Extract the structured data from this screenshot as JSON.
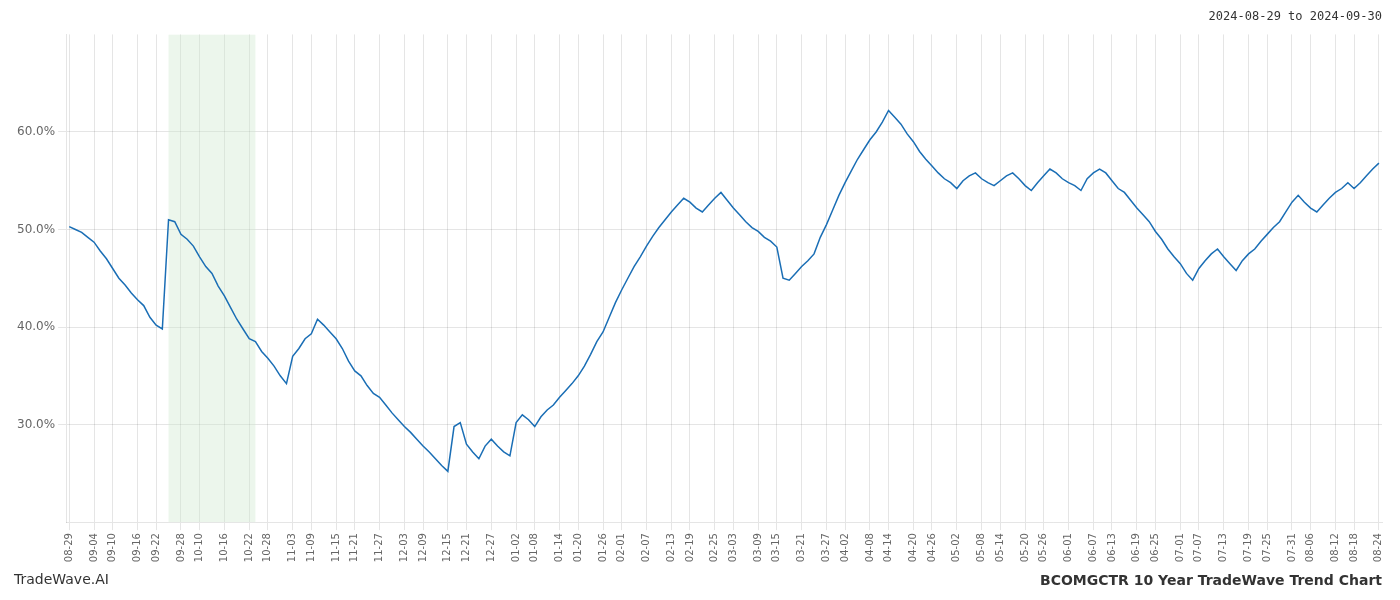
{
  "chart_data": {
    "type": "line",
    "title": "BCOMGCTR 10 Year TradeWave Trend Chart",
    "subtitle": "2024-08-29 to 2024-09-30",
    "annotations": [
      "TradeWave.AI"
    ],
    "color": "#1a6eb5",
    "shade": {
      "x": [
        16,
        30
      ],
      "color": "#c8e6c9"
    },
    "ylim": [
      0.2,
      0.7
    ],
    "yticks": [
      {
        "value": 0.3,
        "label": "30.0%"
      },
      {
        "value": 0.4,
        "label": "40.0%"
      },
      {
        "value": 0.5,
        "label": "50.0%"
      },
      {
        "value": 0.6,
        "label": "60.0%"
      }
    ],
    "grid": true,
    "categories": [
      "08-29",
      null,
      null,
      null,
      "09-04",
      null,
      null,
      "09-10",
      null,
      null,
      null,
      "09-16",
      null,
      null,
      "09-22",
      null,
      null,
      null,
      "09-28",
      null,
      null,
      "10-10",
      null,
      null,
      null,
      "10-16",
      null,
      null,
      null,
      "10-22",
      null,
      null,
      "10-28",
      null,
      null,
      null,
      "11-03",
      null,
      null,
      "11-09",
      null,
      null,
      null,
      "11-15",
      null,
      null,
      "11-21",
      null,
      null,
      null,
      "11-27",
      null,
      null,
      null,
      "12-03",
      null,
      null,
      "12-09",
      null,
      null,
      null,
      "12-15",
      null,
      null,
      "12-21",
      null,
      null,
      null,
      "12-27",
      null,
      null,
      null,
      "01-02",
      null,
      null,
      "01-08",
      null,
      null,
      null,
      "01-14",
      null,
      null,
      "01-20",
      null,
      null,
      null,
      "01-26",
      null,
      null,
      "02-01",
      null,
      null,
      null,
      "02-07",
      null,
      null,
      null,
      "02-13",
      null,
      null,
      "02-19",
      null,
      null,
      null,
      "02-25",
      null,
      null,
      "03-03",
      null,
      null,
      null,
      "03-09",
      null,
      null,
      "03-15",
      null,
      null,
      null,
      "03-21",
      null,
      null,
      null,
      "03-27",
      null,
      null,
      "04-02",
      null,
      null,
      null,
      "04-08",
      null,
      null,
      "04-14",
      null,
      null,
      null,
      "04-20",
      null,
      null,
      "04-26",
      null,
      null,
      null,
      "05-02",
      null,
      null,
      null,
      "05-08",
      null,
      null,
      "05-14",
      null,
      null,
      null,
      "05-20",
      null,
      null,
      "05-26",
      null,
      null,
      null,
      "06-01",
      null,
      null,
      null,
      "06-07",
      null,
      null,
      "06-13",
      null,
      null,
      null,
      "06-19",
      null,
      null,
      "06-25",
      null,
      null,
      null,
      "07-01",
      null,
      null,
      "07-07",
      null,
      null,
      null,
      "07-13",
      null,
      null,
      null,
      "07-19",
      null,
      null,
      "07-25",
      null,
      null,
      null,
      "07-31",
      null,
      null,
      "08-06",
      null,
      null,
      null,
      "08-12",
      null,
      null,
      "08-18",
      null,
      null,
      null,
      "08-24"
    ],
    "values": [
      0.503,
      0.5,
      0.497,
      0.492,
      0.487,
      0.478,
      0.47,
      0.46,
      0.45,
      0.443,
      0.435,
      0.428,
      0.422,
      0.41,
      0.402,
      0.398,
      0.51,
      0.508,
      0.495,
      0.49,
      0.483,
      0.472,
      0.462,
      0.455,
      0.442,
      0.432,
      0.42,
      0.408,
      0.398,
      0.388,
      0.385,
      0.375,
      0.368,
      0.36,
      0.35,
      0.342,
      0.37,
      0.378,
      0.388,
      0.393,
      0.408,
      0.402,
      0.395,
      0.388,
      0.378,
      0.365,
      0.355,
      0.35,
      0.34,
      0.332,
      0.328,
      0.32,
      0.312,
      0.305,
      0.298,
      0.292,
      0.285,
      0.278,
      0.272,
      0.265,
      0.258,
      0.252,
      0.298,
      0.302,
      0.28,
      0.272,
      0.265,
      0.278,
      0.285,
      0.278,
      0.272,
      0.268,
      0.302,
      0.31,
      0.305,
      0.298,
      0.308,
      0.315,
      0.32,
      0.328,
      0.335,
      0.342,
      0.35,
      0.36,
      0.372,
      0.385,
      0.395,
      0.41,
      0.425,
      0.438,
      0.45,
      0.462,
      0.472,
      0.483,
      0.493,
      0.502,
      0.51,
      0.518,
      0.525,
      0.532,
      0.528,
      0.522,
      0.518,
      0.525,
      0.532,
      0.538,
      0.53,
      0.522,
      0.515,
      0.508,
      0.502,
      0.498,
      0.492,
      0.488,
      0.482,
      0.45,
      0.448,
      0.455,
      0.462,
      0.468,
      0.475,
      0.492,
      0.505,
      0.52,
      0.535,
      0.548,
      0.56,
      0.572,
      0.582,
      0.592,
      0.6,
      0.61,
      0.622,
      0.615,
      0.608,
      0.598,
      0.59,
      0.58,
      0.572,
      0.565,
      0.558,
      0.552,
      0.548,
      0.542,
      0.55,
      0.555,
      0.558,
      0.552,
      0.548,
      0.545,
      0.55,
      0.555,
      0.558,
      0.552,
      0.545,
      0.54,
      0.548,
      0.555,
      0.562,
      0.558,
      0.552,
      0.548,
      0.545,
      0.54,
      0.552,
      0.558,
      0.562,
      0.558,
      0.55,
      0.542,
      0.538,
      0.53,
      0.522,
      0.515,
      0.508,
      0.498,
      0.49,
      0.48,
      0.472,
      0.465,
      0.455,
      0.448,
      0.46,
      0.468,
      0.475,
      0.48,
      0.472,
      0.465,
      0.458,
      0.468,
      0.475,
      0.48,
      0.488,
      0.495,
      0.502,
      0.508,
      0.518,
      0.528,
      0.535,
      0.528,
      0.522,
      0.518,
      0.525,
      0.532,
      0.538,
      0.542,
      0.548,
      0.542,
      0.548,
      0.555,
      0.562,
      0.568
    ]
  }
}
